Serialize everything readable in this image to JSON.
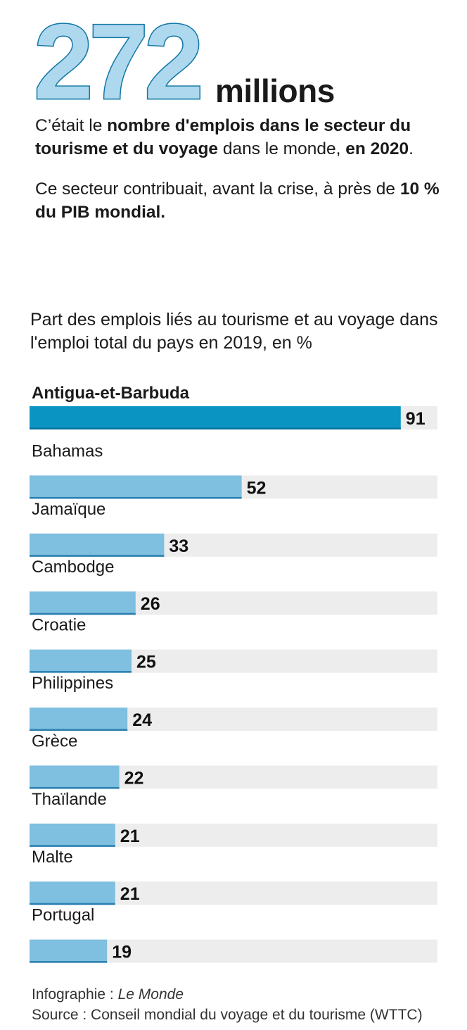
{
  "headline": {
    "number": "272",
    "unit": "millions"
  },
  "intro": {
    "p1_a": "C’était le ",
    "p1_b": "nombre d'emplois dans le secteur du tourisme et du voyage",
    "p1_c": " dans le monde, ",
    "p1_d": "en 2020",
    "p1_e": ".",
    "p2_a": "Ce secteur contribuait, avant la crise, à près de ",
    "p2_b": "10 % du PIB mondial."
  },
  "colors": {
    "highlight_bar": "#0a94c2",
    "bar": "#7fbfe0",
    "track": "#ededed",
    "number_fill": "#aed8ee",
    "number_stroke": "#1278a6"
  },
  "chart_data": {
    "type": "bar",
    "orientation": "horizontal",
    "title": "Part des emplois liés au tourisme et au voyage dans l'emploi total du pays en 2019, en %",
    "categories": [
      "Antigua-et-Barbuda",
      "Bahamas",
      "Jamaïque",
      "Cambodge",
      "Croatie",
      "Philippines",
      "Grèce",
      "Thaïlande",
      "Malte",
      "Portugal"
    ],
    "values": [
      91,
      52,
      33,
      26,
      25,
      24,
      22,
      21,
      21,
      19
    ],
    "highlight_index": 0,
    "xlim": [
      0,
      100
    ],
    "grid": false
  },
  "footer": {
    "credit_label": "Infographie : ",
    "credit_name": "Le Monde",
    "source": "Source : Conseil mondial du voyage et du tourisme (WTTC)"
  }
}
